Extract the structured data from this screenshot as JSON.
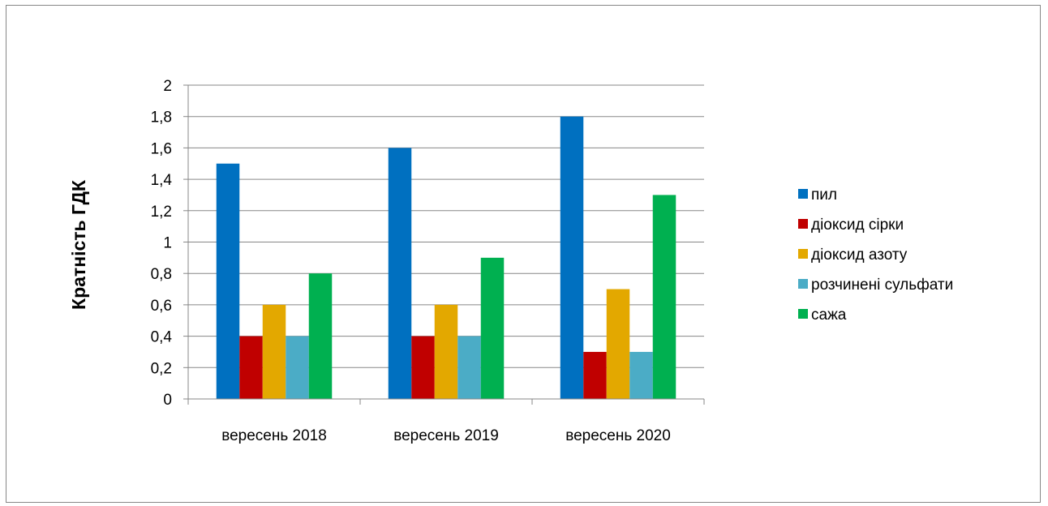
{
  "chart_data": {
    "type": "bar",
    "title": "",
    "xlabel": "",
    "ylabel": "Кратність ГДК",
    "ylim": [
      0,
      2
    ],
    "yticks": [
      "0",
      "0,2",
      "0,4",
      "0,6",
      "0,8",
      "1",
      "1,2",
      "1,4",
      "1,6",
      "1,8",
      "2"
    ],
    "categories": [
      "вересень 2018",
      "вересень 2019",
      "вересень 2020"
    ],
    "series": [
      {
        "name": "пил",
        "color": "#0070C0",
        "values": [
          1.5,
          1.6,
          1.8
        ]
      },
      {
        "name": "діоксид сірки",
        "color": "#C00000",
        "values": [
          0.4,
          0.4,
          0.3
        ]
      },
      {
        "name": "діоксид азоту",
        "color": "#E3A800",
        "values": [
          0.6,
          0.6,
          0.7
        ]
      },
      {
        "name": "розчинені сульфати",
        "color": "#4BACC6",
        "values": [
          0.4,
          0.4,
          0.3
        ]
      },
      {
        "name": "сажа",
        "color": "#00B050",
        "values": [
          0.8,
          0.9,
          1.3
        ]
      }
    ],
    "grid": true,
    "legend": "right"
  }
}
